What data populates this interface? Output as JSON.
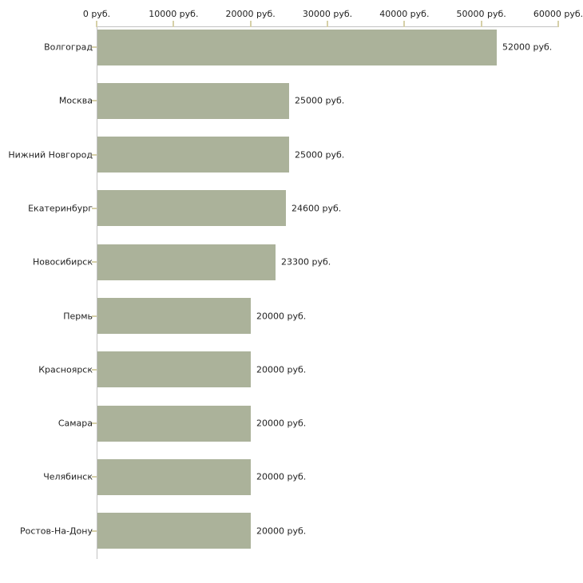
{
  "chart_data": {
    "type": "bar",
    "orientation": "horizontal",
    "categories": [
      "Волгоград",
      "Москва",
      "Нижний Новгород",
      "Екатеринбург",
      "Новосибирск",
      "Пермь",
      "Красноярск",
      "Самара",
      "Челябинск",
      "Ростов-На-Дону"
    ],
    "values": [
      52000,
      25000,
      25000,
      24600,
      23300,
      20000,
      20000,
      20000,
      20000,
      20000
    ],
    "value_labels": [
      "52000 руб.",
      "25000 руб.",
      "25000 руб.",
      "24600 руб.",
      "23300 руб.",
      "20000 руб.",
      "20000 руб.",
      "20000 руб.",
      "20000 руб.",
      "20000 руб."
    ],
    "unit": "руб.",
    "x_axis": {
      "position": "top",
      "min": 0,
      "max": 60000,
      "tick_values": [
        0,
        10000,
        20000,
        30000,
        40000,
        50000,
        60000
      ],
      "tick_labels": [
        "0 руб.",
        "10000 руб.",
        "20000 руб.",
        "30000 руб.",
        "40000 руб.",
        "50000 руб.",
        "60000 руб."
      ]
    },
    "grid": false,
    "legend": false,
    "colors": {
      "bar": "#abb29a",
      "axis_line": "#c2c2c2",
      "tick_mark": "#d6d0a8",
      "text": "#222222",
      "background": "#ffffff"
    }
  }
}
